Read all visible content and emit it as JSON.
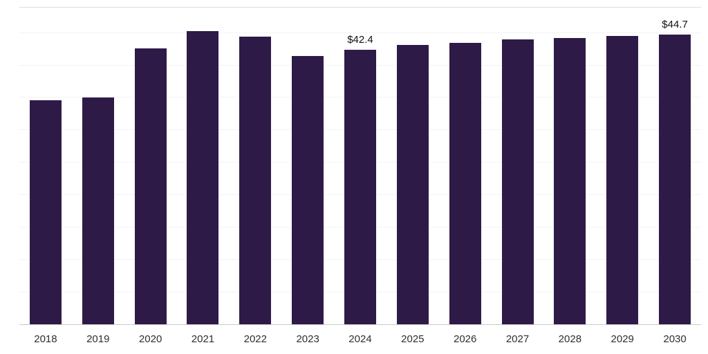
{
  "chart_data": {
    "type": "bar",
    "title": "",
    "xlabel": "",
    "ylabel": "",
    "categories": [
      "2018",
      "2019",
      "2020",
      "2021",
      "2022",
      "2023",
      "2024",
      "2025",
      "2026",
      "2027",
      "2028",
      "2029",
      "2030"
    ],
    "values": [
      34.6,
      35.0,
      42.6,
      45.3,
      44.4,
      41.4,
      42.4,
      43.1,
      43.5,
      44.0,
      44.2,
      44.5,
      44.7
    ],
    "data_labels": [
      "",
      "",
      "",
      "",
      "",
      "",
      "$42.4",
      "",
      "",
      "",
      "",
      "",
      "$44.7"
    ],
    "ylim": [
      0,
      49
    ],
    "grid": true,
    "grid_step": 5,
    "legend": "none",
    "bar_color": "#2e1a47",
    "axis_color": "#c9c9c9",
    "gridline_color": "#f3f3f3",
    "tick_label_color": "#2e2e2e",
    "data_label_color": "#111111",
    "background_color": "#ffffff"
  }
}
